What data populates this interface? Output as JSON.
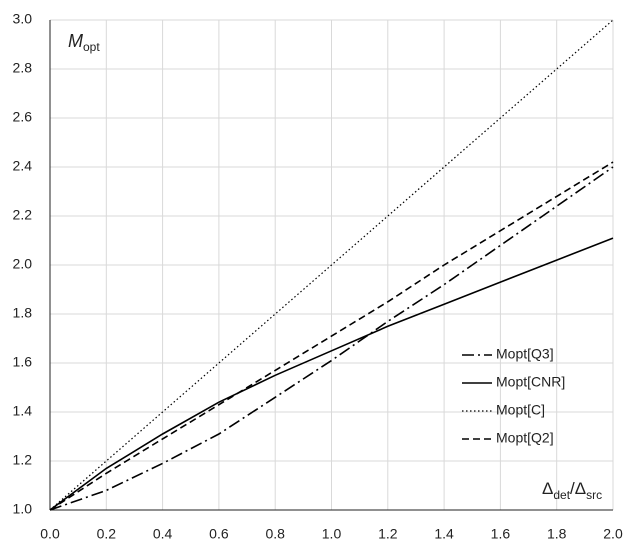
{
  "chart_data": {
    "type": "line",
    "y_label": "M",
    "y_label_sub": "opt",
    "x_label_parts": [
      "Δ",
      "det",
      "/Δ",
      "src"
    ],
    "x": [
      0,
      0.2,
      0.4,
      0.6,
      0.8,
      1.0,
      1.2,
      1.4,
      1.6,
      1.8,
      2.0
    ],
    "series": [
      {
        "name": "Mopt[Q3]",
        "color": "#000000",
        "dash": "dashdot",
        "values": [
          1,
          1.08,
          1.19,
          1.31,
          1.46,
          1.61,
          1.77,
          1.92,
          2.08,
          2.24,
          2.4
        ]
      },
      {
        "name": "Mopt[CNR]",
        "color": "#000000",
        "dash": "solid",
        "values": [
          1,
          1.17,
          1.31,
          1.44,
          1.55,
          1.65,
          1.75,
          1.84,
          1.93,
          2.02,
          2.11
        ]
      },
      {
        "name": "Mopt[C]",
        "color": "#000000",
        "dash": "dotted",
        "values": [
          1,
          1.2,
          1.4,
          1.6,
          1.8,
          2.0,
          2.2,
          2.4,
          2.6,
          2.8,
          3.0
        ]
      },
      {
        "name": "Mopt[Q2]",
        "color": "#000000",
        "dash": "dashed",
        "values": [
          1,
          1.15,
          1.29,
          1.43,
          1.57,
          1.71,
          1.85,
          2.0,
          2.14,
          2.28,
          2.42
        ]
      }
    ],
    "xlim": [
      0,
      2
    ],
    "xticks": [
      {
        "value": 0,
        "label": "0.0"
      },
      0.2,
      0.4,
      0.6,
      0.8,
      {
        "value": 1,
        "label": "1.0"
      },
      1.2,
      1.4,
      1.6,
      1.8,
      {
        "value": 2,
        "label": "2.0"
      }
    ],
    "ylim": [
      1,
      3
    ],
    "yticks": [
      {
        "value": 1,
        "label": "1.0"
      },
      1.2,
      1.4,
      1.6,
      1.8,
      {
        "value": 2,
        "label": "2.0"
      },
      2.2,
      2.4,
      2.6,
      2.8,
      {
        "value": 3,
        "label": "3.0"
      }
    ],
    "grid": true,
    "legend": "right"
  }
}
